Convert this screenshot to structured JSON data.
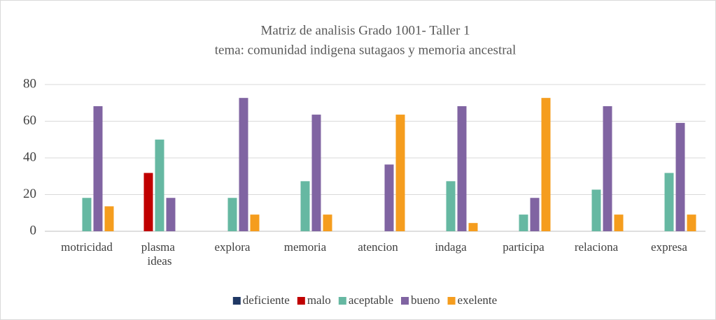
{
  "chart_data": {
    "type": "bar",
    "title": "Matriz de analisis Grado 1001- Taller 1",
    "subtitle": "tema: comunidad indigena sutagaos y memoria ancestral",
    "categories": [
      "motricidad",
      "plasma ideas",
      "explora",
      "memoria",
      "atencion",
      "indaga",
      "participa",
      "relaciona",
      "expresa"
    ],
    "series": [
      {
        "name": "deficiente",
        "color": "#1f3864",
        "values": [
          0,
          0,
          0,
          0,
          0,
          0,
          0,
          0,
          0
        ]
      },
      {
        "name": "malo",
        "color": "#c00000",
        "values": [
          0,
          31.8,
          0,
          0,
          0,
          0,
          0,
          0,
          0
        ]
      },
      {
        "name": "aceptable",
        "color": "#66b8a2",
        "values": [
          18.2,
          50,
          18.2,
          27.3,
          0,
          27.3,
          9.1,
          22.7,
          31.8
        ]
      },
      {
        "name": "bueno",
        "color": "#8064a2",
        "values": [
          68.2,
          18.2,
          72.7,
          63.6,
          36.4,
          68.2,
          18.2,
          68.2,
          59.1
        ]
      },
      {
        "name": "exelente",
        "color": "#f59d1e",
        "values": [
          13.6,
          0,
          9.1,
          9.1,
          63.6,
          4.5,
          72.7,
          9.1,
          9.1
        ]
      }
    ],
    "ylim": [
      0,
      80
    ],
    "yticks": [
      0,
      20,
      40,
      60,
      80
    ],
    "grid": true,
    "legend": "bottom"
  }
}
